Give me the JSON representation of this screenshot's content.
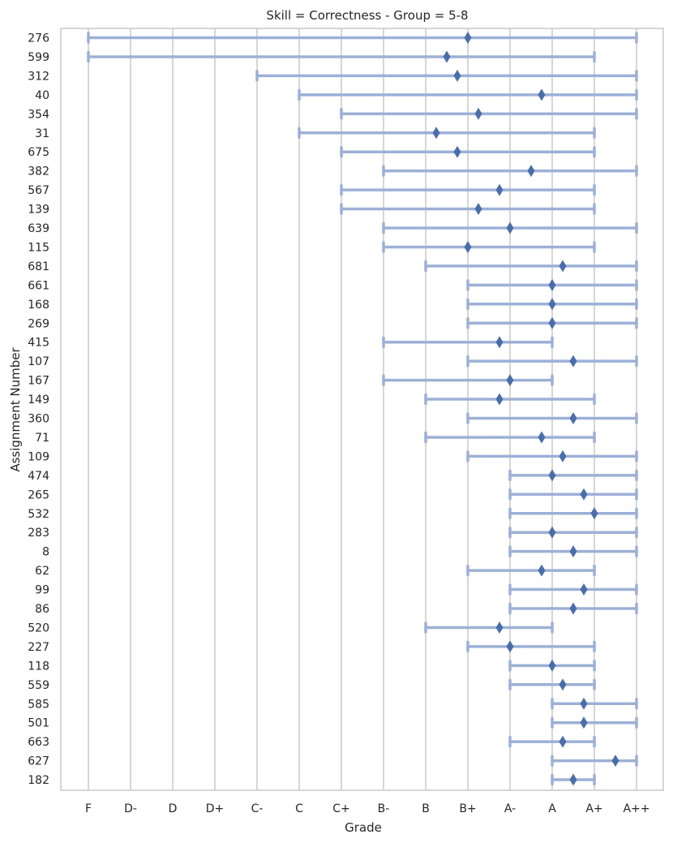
{
  "chart_data": {
    "type": "range-dot",
    "title": "Skill = Correctness - Group = 5-8",
    "xlabel": "Grade",
    "ylabel": "Assignment Number",
    "x_categories": [
      "F",
      "D-",
      "D",
      "D+",
      "C-",
      "C",
      "C+",
      "B-",
      "B",
      "B+",
      "A-",
      "A",
      "A+",
      "A++"
    ],
    "grid": "vertical",
    "colors": {
      "range": "#9db0d6",
      "marker": "#4a6ea9",
      "grid": "#cccccc"
    },
    "rows": [
      {
        "label": "276",
        "min": 0,
        "max": 13,
        "mean": 9.0
      },
      {
        "label": "599",
        "min": 0,
        "max": 12,
        "mean": 8.5
      },
      {
        "label": "312",
        "min": 4,
        "max": 13,
        "mean": 8.75
      },
      {
        "label": "40",
        "min": 5,
        "max": 13,
        "mean": 10.75
      },
      {
        "label": "354",
        "min": 6,
        "max": 13,
        "mean": 9.25
      },
      {
        "label": "31",
        "min": 5,
        "max": 12,
        "mean": 8.25
      },
      {
        "label": "675",
        "min": 6,
        "max": 12,
        "mean": 8.75
      },
      {
        "label": "382",
        "min": 7,
        "max": 13,
        "mean": 10.5
      },
      {
        "label": "567",
        "min": 6,
        "max": 12,
        "mean": 9.75
      },
      {
        "label": "139",
        "min": 6,
        "max": 12,
        "mean": 9.25
      },
      {
        "label": "639",
        "min": 7,
        "max": 13,
        "mean": 10.0
      },
      {
        "label": "115",
        "min": 7,
        "max": 12,
        "mean": 9.0
      },
      {
        "label": "681",
        "min": 8,
        "max": 13,
        "mean": 11.25
      },
      {
        "label": "661",
        "min": 9,
        "max": 13,
        "mean": 11.0
      },
      {
        "label": "168",
        "min": 9,
        "max": 13,
        "mean": 11.0
      },
      {
        "label": "269",
        "min": 9,
        "max": 13,
        "mean": 11.0
      },
      {
        "label": "415",
        "min": 7,
        "max": 11,
        "mean": 9.75
      },
      {
        "label": "107",
        "min": 9,
        "max": 13,
        "mean": 11.5
      },
      {
        "label": "167",
        "min": 7,
        "max": 11,
        "mean": 10.0
      },
      {
        "label": "149",
        "min": 8,
        "max": 12,
        "mean": 9.75
      },
      {
        "label": "360",
        "min": 9,
        "max": 13,
        "mean": 11.5
      },
      {
        "label": "71",
        "min": 8,
        "max": 12,
        "mean": 10.75
      },
      {
        "label": "109",
        "min": 9,
        "max": 13,
        "mean": 11.25
      },
      {
        "label": "474",
        "min": 10,
        "max": 13,
        "mean": 11.0
      },
      {
        "label": "265",
        "min": 10,
        "max": 13,
        "mean": 11.75
      },
      {
        "label": "532",
        "min": 10,
        "max": 13,
        "mean": 12.0
      },
      {
        "label": "283",
        "min": 10,
        "max": 13,
        "mean": 11.0
      },
      {
        "label": "8",
        "min": 10,
        "max": 13,
        "mean": 11.5
      },
      {
        "label": "62",
        "min": 9,
        "max": 12,
        "mean": 10.75
      },
      {
        "label": "99",
        "min": 10,
        "max": 13,
        "mean": 11.75
      },
      {
        "label": "86",
        "min": 10,
        "max": 13,
        "mean": 11.5
      },
      {
        "label": "520",
        "min": 8,
        "max": 11,
        "mean": 9.75
      },
      {
        "label": "227",
        "min": 9,
        "max": 12,
        "mean": 10.0
      },
      {
        "label": "118",
        "min": 10,
        "max": 12,
        "mean": 11.0
      },
      {
        "label": "559",
        "min": 10,
        "max": 12,
        "mean": 11.25
      },
      {
        "label": "585",
        "min": 11,
        "max": 13,
        "mean": 11.75
      },
      {
        "label": "501",
        "min": 11,
        "max": 13,
        "mean": 11.75
      },
      {
        "label": "663",
        "min": 10,
        "max": 12,
        "mean": 11.25
      },
      {
        "label": "627",
        "min": 11,
        "max": 13,
        "mean": 12.5
      },
      {
        "label": "182",
        "min": 11,
        "max": 12,
        "mean": 11.5
      }
    ]
  }
}
